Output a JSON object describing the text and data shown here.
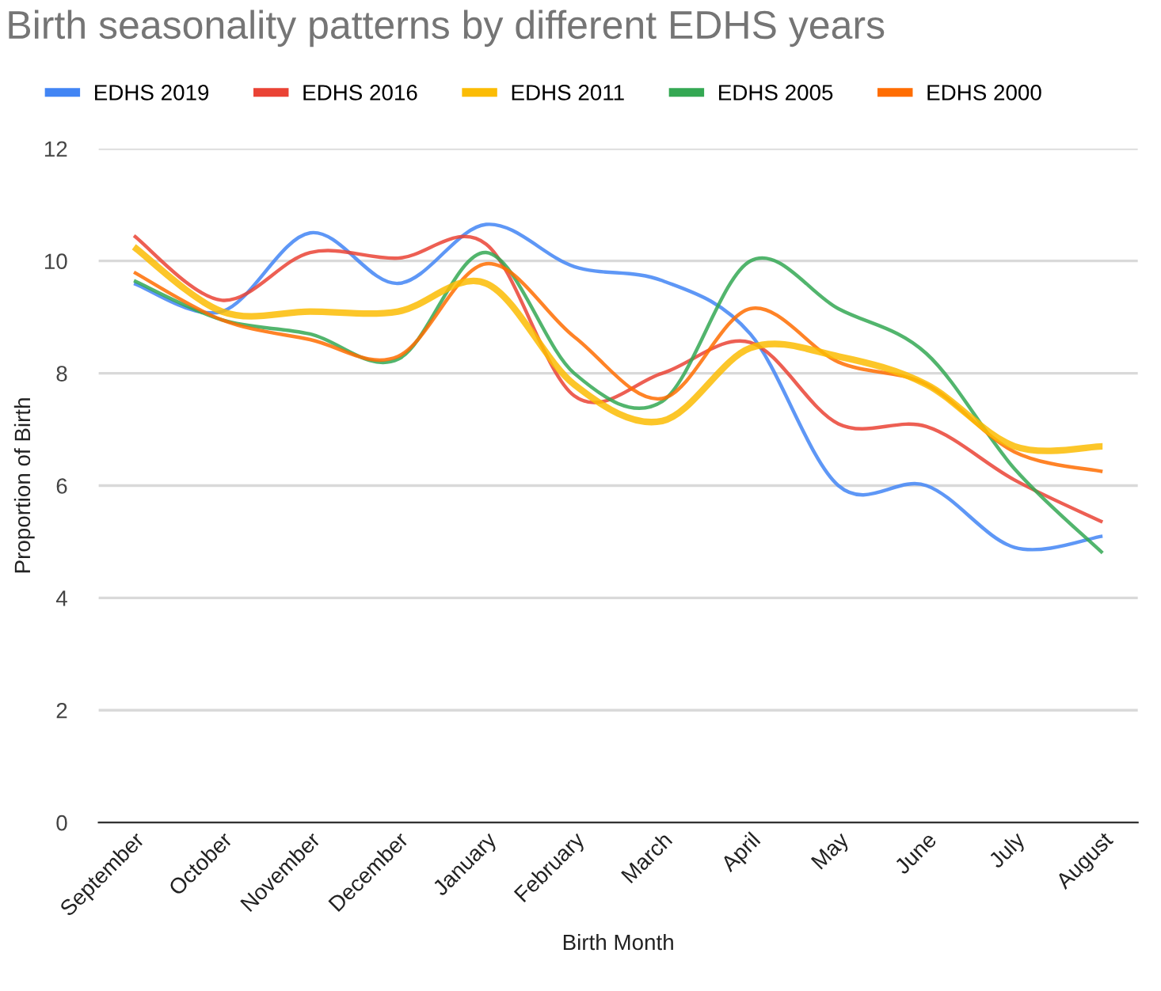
{
  "chart_data": {
    "type": "line",
    "title": "Birth seasonality patterns by different EDHS years",
    "xlabel": "Birth Month",
    "ylabel": "Proportion of Birth",
    "categories": [
      "September",
      "October",
      "November",
      "December",
      "January",
      "February",
      "March",
      "April",
      "May",
      "June",
      "July",
      "August"
    ],
    "series": [
      {
        "name": "EDHS 2019",
        "color": "#4285f4",
        "values": [
          9.6,
          9.1,
          10.5,
          9.6,
          10.65,
          9.9,
          9.65,
          8.7,
          6.0,
          6.0,
          4.9,
          5.1
        ]
      },
      {
        "name": "EDHS 2016",
        "color": "#ea4335",
        "values": [
          10.45,
          9.3,
          10.15,
          10.05,
          10.3,
          7.6,
          8.0,
          8.55,
          7.1,
          7.05,
          6.1,
          5.35
        ]
      },
      {
        "name": "EDHS 2011",
        "color": "#fbbc04",
        "values": [
          10.25,
          9.1,
          9.1,
          9.1,
          9.6,
          7.8,
          7.15,
          8.45,
          8.3,
          7.8,
          6.7,
          6.7
        ]
      },
      {
        "name": "EDHS 2005",
        "color": "#34a853",
        "values": [
          9.65,
          8.95,
          8.7,
          8.25,
          10.15,
          8.0,
          7.5,
          10.0,
          9.15,
          8.35,
          6.3,
          4.8
        ]
      },
      {
        "name": "EDHS 2000",
        "color": "#ff6d01",
        "values": [
          9.8,
          8.95,
          8.6,
          8.3,
          9.95,
          8.65,
          7.55,
          9.15,
          8.2,
          7.8,
          6.6,
          6.25
        ]
      }
    ],
    "ylim": [
      0,
      12
    ],
    "yticks": [
      0,
      2,
      4,
      6,
      8,
      10,
      12
    ],
    "grid": "y",
    "legend": "top",
    "marker": "none",
    "line_style": "solid"
  }
}
